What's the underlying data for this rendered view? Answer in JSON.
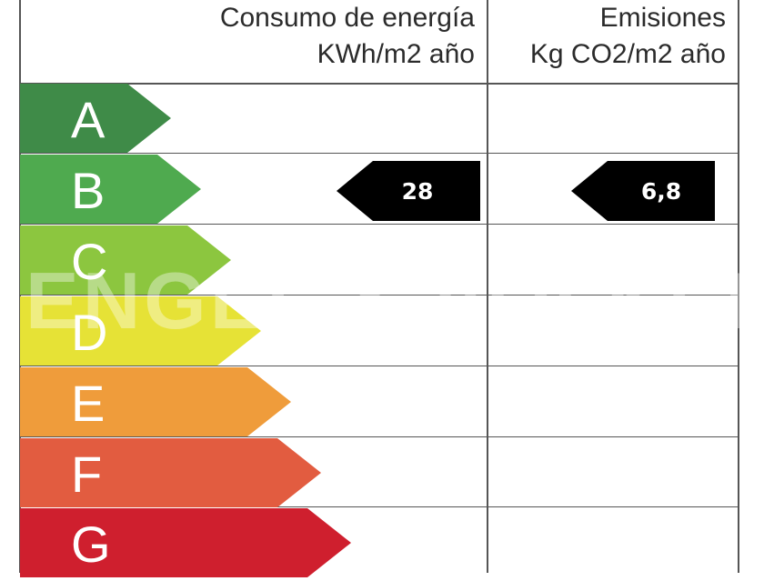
{
  "header": {
    "consumption_title": "Consumo de energía",
    "consumption_unit": "KWh/m2 año",
    "emissions_title": "Emisiones",
    "emissions_unit": "Kg CO2/m2 año"
  },
  "ratings": [
    {
      "letter": "A",
      "color": "#3f8b48"
    },
    {
      "letter": "B",
      "color": "#4faa4f"
    },
    {
      "letter": "C",
      "color": "#8cc63f"
    },
    {
      "letter": "D",
      "color": "#e6e236"
    },
    {
      "letter": "E",
      "color": "#ef9c3b"
    },
    {
      "letter": "F",
      "color": "#e25c40"
    },
    {
      "letter": "G",
      "color": "#cf1f2e"
    }
  ],
  "current_rating": "B",
  "consumption_value": "28",
  "emissions_value": "6,8",
  "watermark": "ENGEL & VÖLKERS"
}
